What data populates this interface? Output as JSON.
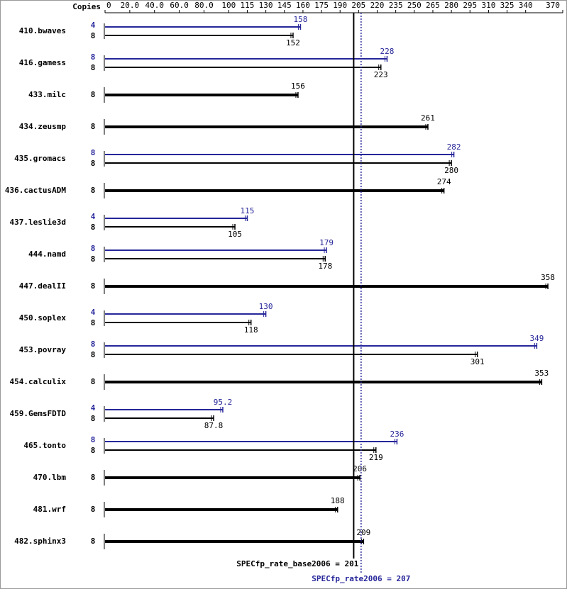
{
  "chart_data": {
    "type": "bar",
    "copies_label": "Copies",
    "categories": [
      "410.bwaves",
      "416.gamess",
      "433.milc",
      "434.zeusmp",
      "435.gromacs",
      "436.cactusADM",
      "437.leslie3d",
      "444.namd",
      "447.dealII",
      "450.soplex",
      "453.povray",
      "454.calculix",
      "459.GemsFDTD",
      "465.tonto",
      "470.lbm",
      "481.wrf",
      "482.sphinx3"
    ],
    "series": [
      {
        "color": "#000000",
        "copies": [
          8,
          8,
          8,
          8,
          8,
          8,
          8,
          8,
          8,
          8,
          8,
          8,
          8,
          8,
          8,
          8,
          8
        ],
        "values": [
          152,
          223,
          156,
          261,
          280,
          274,
          105,
          178,
          358,
          118,
          301,
          353,
          87.8,
          219,
          206,
          188,
          209
        ]
      },
      {
        "color": "#26269a",
        "copies": [
          4,
          8,
          null,
          null,
          8,
          null,
          4,
          8,
          null,
          4,
          8,
          null,
          4,
          8,
          null,
          null,
          null
        ],
        "values": [
          158,
          228,
          null,
          null,
          282,
          null,
          115,
          179,
          null,
          130,
          349,
          null,
          95.2,
          236,
          null,
          null,
          null
        ]
      }
    ],
    "reference_lines": [
      {
        "label": "SPECfp_rate_base2006 = 201",
        "value": 201,
        "color": "#000000"
      },
      {
        "label": "SPECfp_rate2006 = 207",
        "value": 207,
        "color": "#26269a"
      }
    ],
    "xlim": [
      0,
      370
    ],
    "xticks": [
      0,
      {
        "value": 20,
        "label": "20.0"
      },
      {
        "value": 40,
        "label": "40.0"
      },
      {
        "value": 60,
        "label": "60.0"
      },
      {
        "value": 80,
        "label": "80.0"
      },
      100,
      115,
      130,
      145,
      160,
      175,
      190,
      205,
      220,
      235,
      250,
      265,
      280,
      295,
      310,
      325,
      340,
      370
    ]
  }
}
